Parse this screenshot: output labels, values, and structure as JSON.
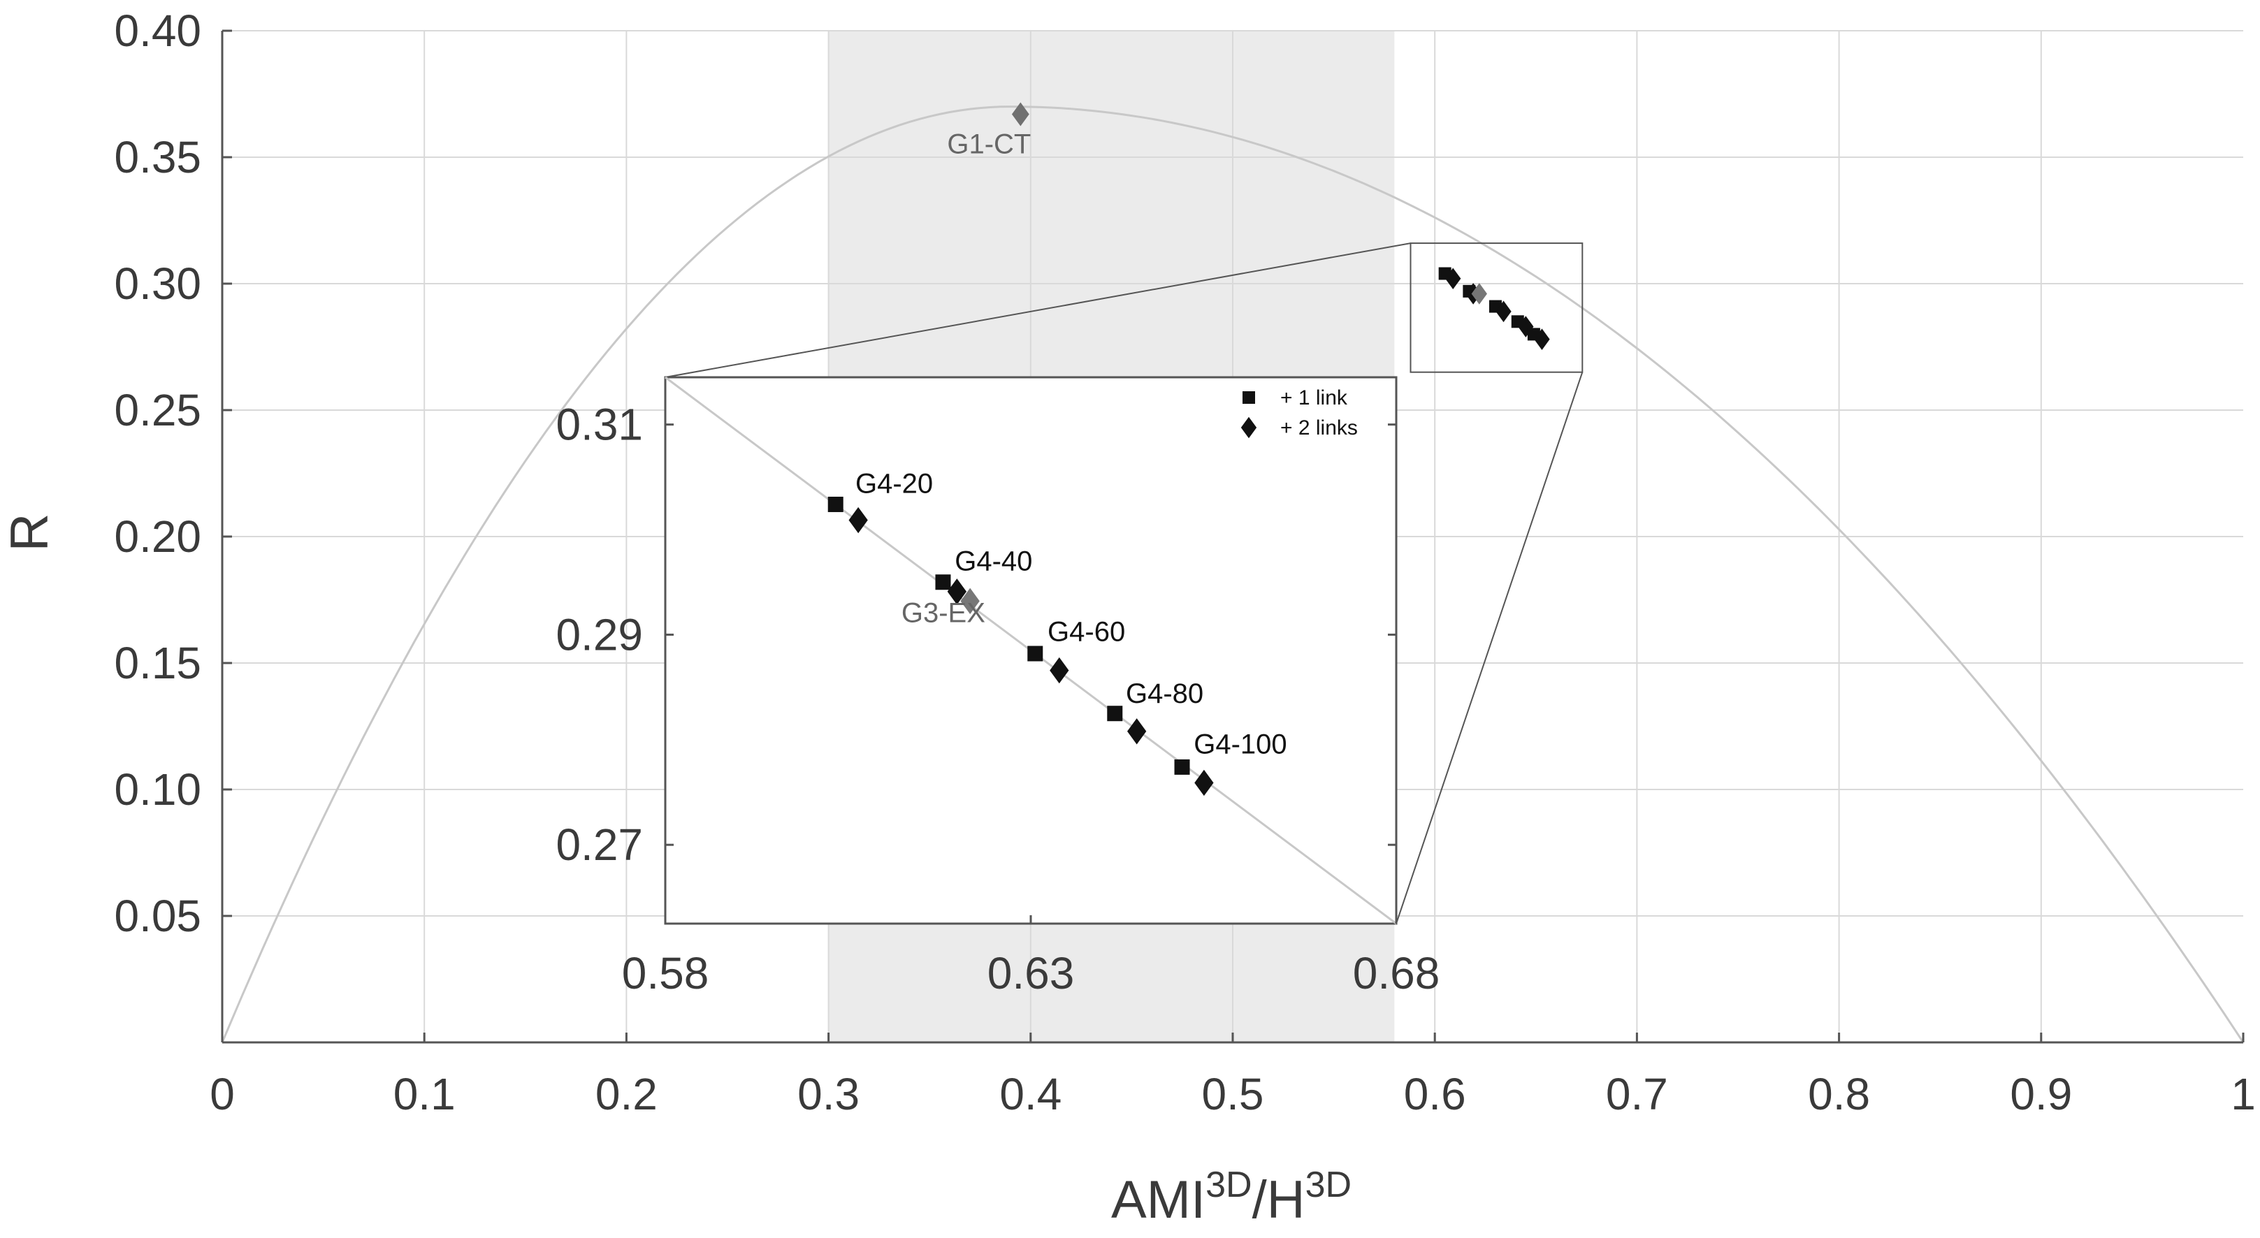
{
  "chart_data": {
    "type": "scatter",
    "xlabel": {
      "base1": "AMI",
      "sup1": "3D",
      "sep": "/H",
      "sup2": "3D"
    },
    "ylabel": "R",
    "xlim": [
      0,
      1
    ],
    "ylim": [
      0,
      0.4
    ],
    "x_ticks": [
      "0",
      "0.1",
      "0.2",
      "0.3",
      "0.4",
      "0.5",
      "0.6",
      "0.7",
      "0.8",
      "0.9",
      "1"
    ],
    "y_ticks": [
      "0.05",
      "0.10",
      "0.15",
      "0.20",
      "0.25",
      "0.30",
      "0.35",
      "0.40"
    ],
    "grid": true,
    "shaded_band": {
      "x_from": 0.3,
      "x_to": 0.58,
      "color": "#ebebeb"
    },
    "curve": {
      "shape": "parabola",
      "x_from": 0,
      "x_to": 1,
      "peak_x": 0.39,
      "peak_y": 0.37,
      "color": "#c8c8c8"
    },
    "zoom_box": {
      "xlim": [
        0.588,
        0.673
      ],
      "ylim": [
        0.265,
        0.316
      ]
    },
    "highlight": {
      "name": "G1-CT",
      "x": 0.395,
      "y": 0.367,
      "marker": "diamond",
      "color": "#707070"
    },
    "main_points": [
      {
        "x": 0.605,
        "y": 0.304,
        "marker": "square"
      },
      {
        "x": 0.609,
        "y": 0.302,
        "marker": "diamond"
      },
      {
        "x": 0.617,
        "y": 0.297,
        "marker": "square"
      },
      {
        "x": 0.619,
        "y": 0.296,
        "marker": "diamond"
      },
      {
        "x": 0.622,
        "y": 0.296,
        "marker": "diamond-gray"
      },
      {
        "x": 0.63,
        "y": 0.291,
        "marker": "square"
      },
      {
        "x": 0.634,
        "y": 0.289,
        "marker": "diamond"
      },
      {
        "x": 0.641,
        "y": 0.285,
        "marker": "square"
      },
      {
        "x": 0.645,
        "y": 0.283,
        "marker": "diamond"
      },
      {
        "x": 0.649,
        "y": 0.28,
        "marker": "square"
      },
      {
        "x": 0.653,
        "y": 0.278,
        "marker": "diamond"
      }
    ],
    "inset": {
      "xlim": [
        0.58,
        0.68
      ],
      "ylim": [
        0.2625,
        0.3145
      ],
      "x_ticks": [
        "0.58",
        "0.63",
        "0.68"
      ],
      "y_ticks": [
        "0.31",
        "0.29",
        "0.27"
      ],
      "line": {
        "x1": 0.58,
        "y1": 0.3145,
        "x2": 0.68,
        "y2": 0.2625
      },
      "points": [
        {
          "x": 0.6033,
          "y": 0.3024,
          "marker": "square",
          "color": "#111111"
        },
        {
          "x": 0.6064,
          "y": 0.3009,
          "marker": "diamond",
          "color": "#111111"
        },
        {
          "x": 0.618,
          "y": 0.295,
          "marker": "square",
          "color": "#111111"
        },
        {
          "x": 0.6199,
          "y": 0.2941,
          "marker": "diamond",
          "color": "#111111"
        },
        {
          "x": 0.6217,
          "y": 0.2932,
          "marker": "diamond",
          "color": "#777777"
        },
        {
          "x": 0.6306,
          "y": 0.2882,
          "marker": "square",
          "color": "#111111"
        },
        {
          "x": 0.6339,
          "y": 0.2866,
          "marker": "diamond",
          "color": "#111111"
        },
        {
          "x": 0.6415,
          "y": 0.2825,
          "marker": "square",
          "color": "#111111"
        },
        {
          "x": 0.6445,
          "y": 0.2808,
          "marker": "diamond",
          "color": "#111111"
        },
        {
          "x": 0.6507,
          "y": 0.2774,
          "marker": "square",
          "color": "#111111"
        },
        {
          "x": 0.6537,
          "y": 0.2759,
          "marker": "diamond",
          "color": "#111111"
        }
      ],
      "labels": [
        {
          "text": "G4-20",
          "x": 0.606,
          "y": 0.3035,
          "style": "dark"
        },
        {
          "text": "G4-40",
          "x": 0.6196,
          "y": 0.2961,
          "style": "dark"
        },
        {
          "text": "G3-EX",
          "x": 0.6123,
          "y": 0.2912,
          "style": "gray"
        },
        {
          "text": "G4-60",
          "x": 0.6323,
          "y": 0.2894,
          "style": "dark"
        },
        {
          "text": "G4-80",
          "x": 0.643,
          "y": 0.2835,
          "style": "dark"
        },
        {
          "text": "G4-100",
          "x": 0.6523,
          "y": 0.2787,
          "style": "dark"
        }
      ],
      "legend": [
        {
          "marker": "square",
          "label": "+ 1 link"
        },
        {
          "marker": "diamond",
          "label": "+ 2 links"
        }
      ]
    }
  }
}
